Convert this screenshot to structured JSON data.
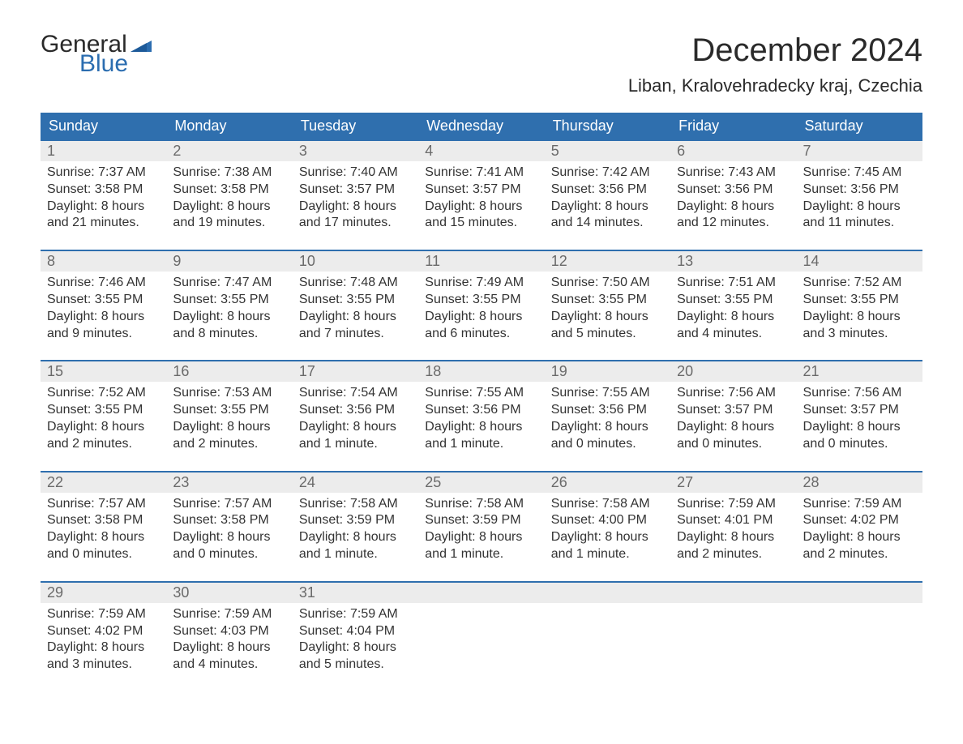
{
  "logo": {
    "general": "General",
    "blue": "Blue",
    "flag_color": "#2b6db0"
  },
  "title": "December 2024",
  "location": "Liban, Kralovehradecky kraj, Czechia",
  "colors": {
    "header_bg": "#2f6fae",
    "header_text": "#ffffff",
    "date_row_bg": "#ececec",
    "week_border": "#2f6fae",
    "body_text": "#333333",
    "date_text": "#6a6a6a",
    "logo_general": "#2a2a2a",
    "logo_blue": "#2b6db0"
  },
  "typography": {
    "title_fontsize": 40,
    "location_fontsize": 22,
    "day_header_fontsize": 18,
    "date_fontsize": 18,
    "info_fontsize": 16,
    "logo_fontsize": 30
  },
  "days": [
    "Sunday",
    "Monday",
    "Tuesday",
    "Wednesday",
    "Thursday",
    "Friday",
    "Saturday"
  ],
  "weeks": [
    [
      {
        "date": "1",
        "sunrise": "Sunrise: 7:37 AM",
        "sunset": "Sunset: 3:58 PM",
        "day1": "Daylight: 8 hours",
        "day2": "and 21 minutes."
      },
      {
        "date": "2",
        "sunrise": "Sunrise: 7:38 AM",
        "sunset": "Sunset: 3:58 PM",
        "day1": "Daylight: 8 hours",
        "day2": "and 19 minutes."
      },
      {
        "date": "3",
        "sunrise": "Sunrise: 7:40 AM",
        "sunset": "Sunset: 3:57 PM",
        "day1": "Daylight: 8 hours",
        "day2": "and 17 minutes."
      },
      {
        "date": "4",
        "sunrise": "Sunrise: 7:41 AM",
        "sunset": "Sunset: 3:57 PM",
        "day1": "Daylight: 8 hours",
        "day2": "and 15 minutes."
      },
      {
        "date": "5",
        "sunrise": "Sunrise: 7:42 AM",
        "sunset": "Sunset: 3:56 PM",
        "day1": "Daylight: 8 hours",
        "day2": "and 14 minutes."
      },
      {
        "date": "6",
        "sunrise": "Sunrise: 7:43 AM",
        "sunset": "Sunset: 3:56 PM",
        "day1": "Daylight: 8 hours",
        "day2": "and 12 minutes."
      },
      {
        "date": "7",
        "sunrise": "Sunrise: 7:45 AM",
        "sunset": "Sunset: 3:56 PM",
        "day1": "Daylight: 8 hours",
        "day2": "and 11 minutes."
      }
    ],
    [
      {
        "date": "8",
        "sunrise": "Sunrise: 7:46 AM",
        "sunset": "Sunset: 3:55 PM",
        "day1": "Daylight: 8 hours",
        "day2": "and 9 minutes."
      },
      {
        "date": "9",
        "sunrise": "Sunrise: 7:47 AM",
        "sunset": "Sunset: 3:55 PM",
        "day1": "Daylight: 8 hours",
        "day2": "and 8 minutes."
      },
      {
        "date": "10",
        "sunrise": "Sunrise: 7:48 AM",
        "sunset": "Sunset: 3:55 PM",
        "day1": "Daylight: 8 hours",
        "day2": "and 7 minutes."
      },
      {
        "date": "11",
        "sunrise": "Sunrise: 7:49 AM",
        "sunset": "Sunset: 3:55 PM",
        "day1": "Daylight: 8 hours",
        "day2": "and 6 minutes."
      },
      {
        "date": "12",
        "sunrise": "Sunrise: 7:50 AM",
        "sunset": "Sunset: 3:55 PM",
        "day1": "Daylight: 8 hours",
        "day2": "and 5 minutes."
      },
      {
        "date": "13",
        "sunrise": "Sunrise: 7:51 AM",
        "sunset": "Sunset: 3:55 PM",
        "day1": "Daylight: 8 hours",
        "day2": "and 4 minutes."
      },
      {
        "date": "14",
        "sunrise": "Sunrise: 7:52 AM",
        "sunset": "Sunset: 3:55 PM",
        "day1": "Daylight: 8 hours",
        "day2": "and 3 minutes."
      }
    ],
    [
      {
        "date": "15",
        "sunrise": "Sunrise: 7:52 AM",
        "sunset": "Sunset: 3:55 PM",
        "day1": "Daylight: 8 hours",
        "day2": "and 2 minutes."
      },
      {
        "date": "16",
        "sunrise": "Sunrise: 7:53 AM",
        "sunset": "Sunset: 3:55 PM",
        "day1": "Daylight: 8 hours",
        "day2": "and 2 minutes."
      },
      {
        "date": "17",
        "sunrise": "Sunrise: 7:54 AM",
        "sunset": "Sunset: 3:56 PM",
        "day1": "Daylight: 8 hours",
        "day2": "and 1 minute."
      },
      {
        "date": "18",
        "sunrise": "Sunrise: 7:55 AM",
        "sunset": "Sunset: 3:56 PM",
        "day1": "Daylight: 8 hours",
        "day2": "and 1 minute."
      },
      {
        "date": "19",
        "sunrise": "Sunrise: 7:55 AM",
        "sunset": "Sunset: 3:56 PM",
        "day1": "Daylight: 8 hours",
        "day2": "and 0 minutes."
      },
      {
        "date": "20",
        "sunrise": "Sunrise: 7:56 AM",
        "sunset": "Sunset: 3:57 PM",
        "day1": "Daylight: 8 hours",
        "day2": "and 0 minutes."
      },
      {
        "date": "21",
        "sunrise": "Sunrise: 7:56 AM",
        "sunset": "Sunset: 3:57 PM",
        "day1": "Daylight: 8 hours",
        "day2": "and 0 minutes."
      }
    ],
    [
      {
        "date": "22",
        "sunrise": "Sunrise: 7:57 AM",
        "sunset": "Sunset: 3:58 PM",
        "day1": "Daylight: 8 hours",
        "day2": "and 0 minutes."
      },
      {
        "date": "23",
        "sunrise": "Sunrise: 7:57 AM",
        "sunset": "Sunset: 3:58 PM",
        "day1": "Daylight: 8 hours",
        "day2": "and 0 minutes."
      },
      {
        "date": "24",
        "sunrise": "Sunrise: 7:58 AM",
        "sunset": "Sunset: 3:59 PM",
        "day1": "Daylight: 8 hours",
        "day2": "and 1 minute."
      },
      {
        "date": "25",
        "sunrise": "Sunrise: 7:58 AM",
        "sunset": "Sunset: 3:59 PM",
        "day1": "Daylight: 8 hours",
        "day2": "and 1 minute."
      },
      {
        "date": "26",
        "sunrise": "Sunrise: 7:58 AM",
        "sunset": "Sunset: 4:00 PM",
        "day1": "Daylight: 8 hours",
        "day2": "and 1 minute."
      },
      {
        "date": "27",
        "sunrise": "Sunrise: 7:59 AM",
        "sunset": "Sunset: 4:01 PM",
        "day1": "Daylight: 8 hours",
        "day2": "and 2 minutes."
      },
      {
        "date": "28",
        "sunrise": "Sunrise: 7:59 AM",
        "sunset": "Sunset: 4:02 PM",
        "day1": "Daylight: 8 hours",
        "day2": "and 2 minutes."
      }
    ],
    [
      {
        "date": "29",
        "sunrise": "Sunrise: 7:59 AM",
        "sunset": "Sunset: 4:02 PM",
        "day1": "Daylight: 8 hours",
        "day2": "and 3 minutes."
      },
      {
        "date": "30",
        "sunrise": "Sunrise: 7:59 AM",
        "sunset": "Sunset: 4:03 PM",
        "day1": "Daylight: 8 hours",
        "day2": "and 4 minutes."
      },
      {
        "date": "31",
        "sunrise": "Sunrise: 7:59 AM",
        "sunset": "Sunset: 4:04 PM",
        "day1": "Daylight: 8 hours",
        "day2": "and 5 minutes."
      },
      {
        "date": "",
        "sunrise": "",
        "sunset": "",
        "day1": "",
        "day2": ""
      },
      {
        "date": "",
        "sunrise": "",
        "sunset": "",
        "day1": "",
        "day2": ""
      },
      {
        "date": "",
        "sunrise": "",
        "sunset": "",
        "day1": "",
        "day2": ""
      },
      {
        "date": "",
        "sunrise": "",
        "sunset": "",
        "day1": "",
        "day2": ""
      }
    ]
  ]
}
